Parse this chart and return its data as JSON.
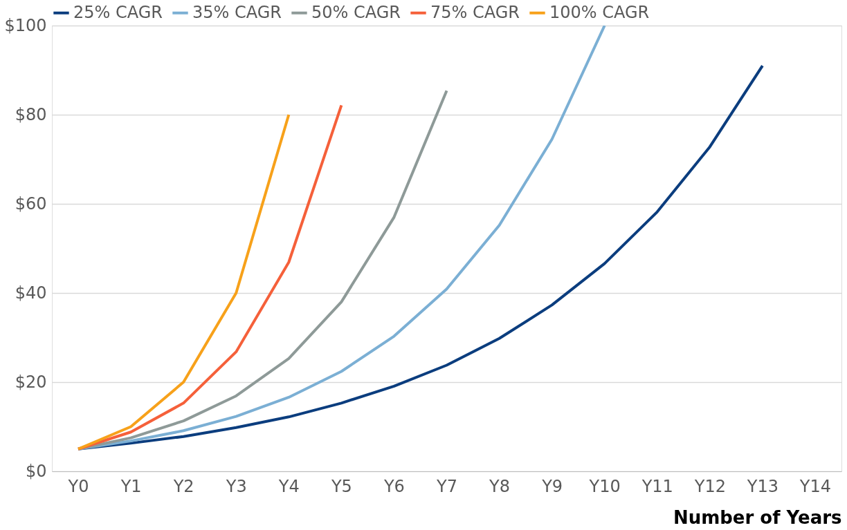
{
  "chart_data": {
    "type": "line",
    "xlabel": "Number of Years",
    "categories": [
      "Y0",
      "Y1",
      "Y2",
      "Y3",
      "Y4",
      "Y5",
      "Y6",
      "Y7",
      "Y8",
      "Y9",
      "Y10",
      "Y11",
      "Y12",
      "Y13",
      "Y14"
    ],
    "ylim": [
      0,
      100
    ],
    "yticks": [
      {
        "value": 0,
        "label": "$0"
      },
      {
        "value": 20,
        "label": "$20"
      },
      {
        "value": 40,
        "label": "$40"
      },
      {
        "value": 60,
        "label": "$60"
      },
      {
        "value": 80,
        "label": "$80"
      },
      {
        "value": 100,
        "label": "$100"
      }
    ],
    "grid": "y",
    "legend": "top",
    "marker": "none",
    "line_style": "solid",
    "series": [
      {
        "name": "25% CAGR",
        "color": "#0b3d7e",
        "values": [
          5,
          6.3,
          7.8,
          9.8,
          12.2,
          15.3,
          19.1,
          23.8,
          29.8,
          37.3,
          46.6,
          58.2,
          72.8,
          91,
          null
        ]
      },
      {
        "name": "35% CAGR",
        "color": "#7bafd4",
        "values": [
          5,
          6.8,
          9.1,
          12.3,
          16.6,
          22.4,
          30.3,
          40.9,
          55.2,
          74.5,
          100,
          null,
          null,
          null,
          null
        ]
      },
      {
        "name": "50% CAGR",
        "color": "#8e9a98",
        "values": [
          5,
          7.5,
          11.3,
          16.9,
          25.3,
          38,
          57,
          85.4,
          null,
          null,
          null,
          null,
          null,
          null,
          null
        ]
      },
      {
        "name": "75% CAGR",
        "color": "#f5603a",
        "values": [
          5,
          8.8,
          15.3,
          26.8,
          46.9,
          82.1,
          null,
          null,
          null,
          null,
          null,
          null,
          null,
          null,
          null
        ]
      },
      {
        "name": "100% CAGR",
        "color": "#f7a11a",
        "values": [
          5,
          10,
          20,
          40,
          80,
          null,
          null,
          null,
          null,
          null,
          null,
          null,
          null,
          null,
          null
        ]
      }
    ]
  }
}
